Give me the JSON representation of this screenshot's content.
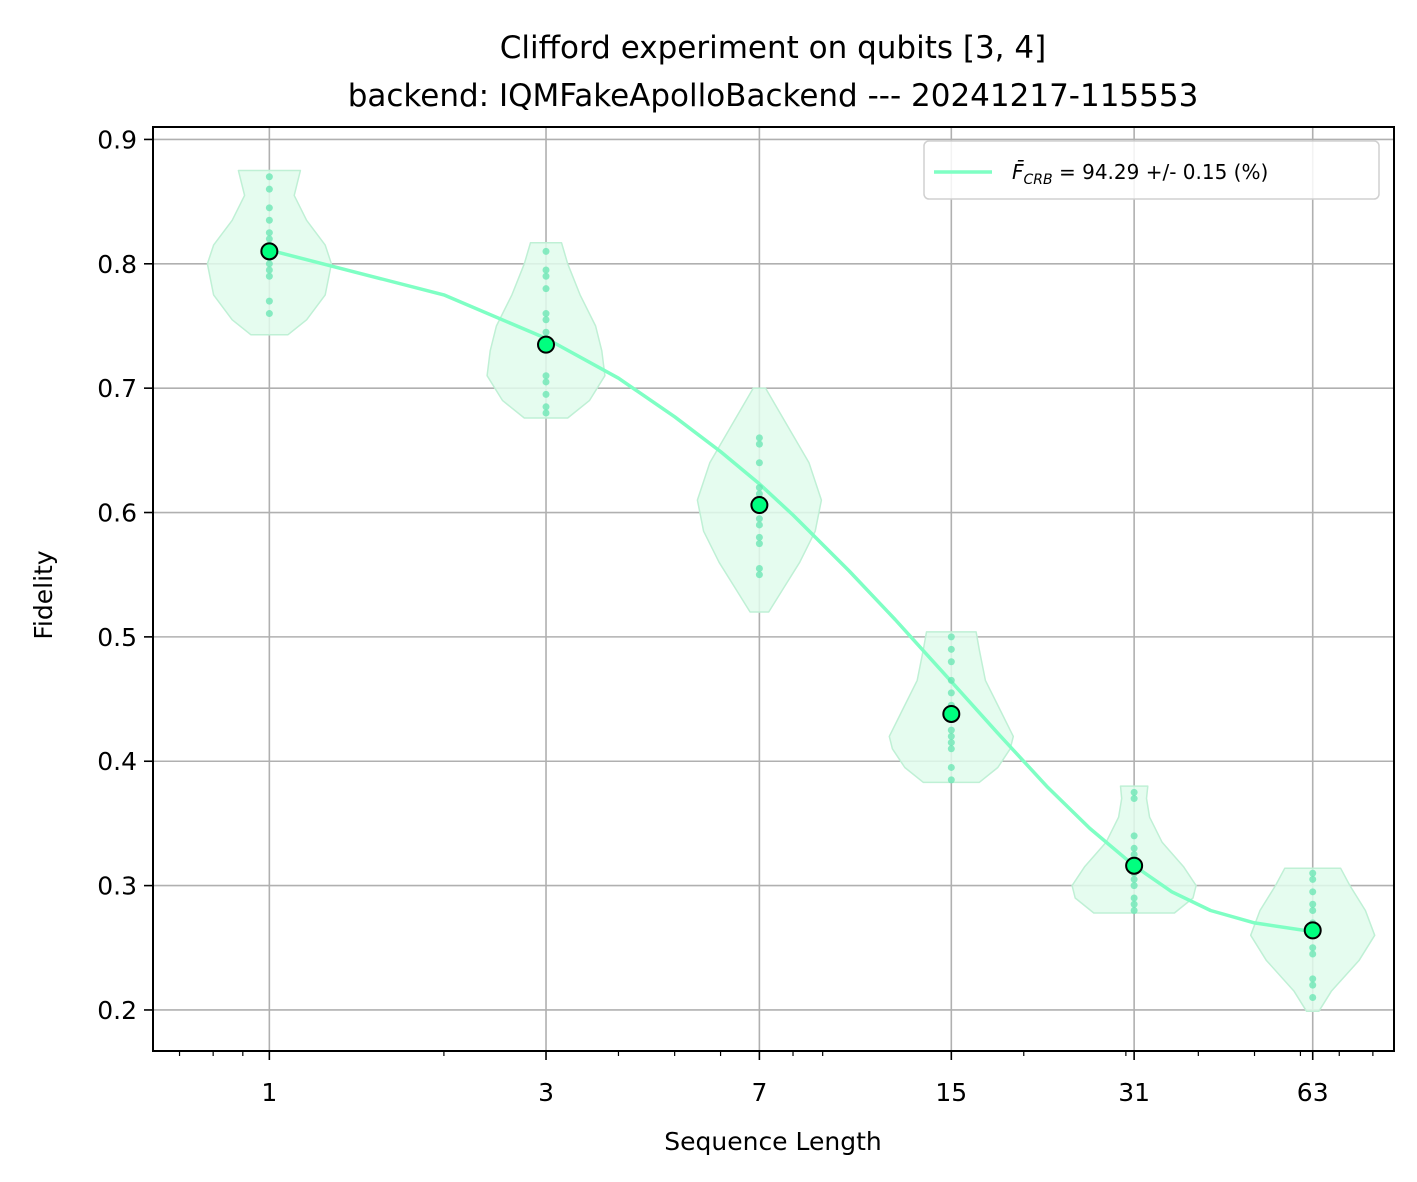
{
  "chart_data": {
    "type": "scatter",
    "title": "Clifford experiment on qubits [3, 4]",
    "subtitle": "backend: IQMFakeApolloBackend --- 20241217-115553",
    "xlabel": "Sequence Length",
    "ylabel": "Fidelity",
    "xscale": "log",
    "xlim": [
      0.63,
      87
    ],
    "ylim": [
      0.167,
      0.91
    ],
    "grid": true,
    "x_ticks": [
      1,
      3,
      7,
      15,
      31,
      63
    ],
    "x_tick_labels": [
      "1",
      "3",
      "7",
      "15",
      "31",
      "63"
    ],
    "y_ticks": [
      0.2,
      0.3,
      0.4,
      0.5,
      0.6,
      0.7,
      0.8,
      0.9
    ],
    "y_tick_labels": [
      "0.2",
      "0.3",
      "0.4",
      "0.5",
      "0.6",
      "0.7",
      "0.8",
      "0.9"
    ],
    "colors": {
      "fit_line": "#7fffc4",
      "marker_fill": "#00ff7f",
      "violin_fill": "#e0fbec",
      "violin_edge": "#bff0d5",
      "samples": "#66e6b2",
      "grid": "#b0b0b0"
    },
    "legend": {
      "position": "upper right",
      "label_symbol": "F̄",
      "label_subscript": "CRB",
      "label_rest": " = 94.29 +/- 0.15 (%)"
    },
    "means": [
      {
        "x": 1,
        "y": 0.81
      },
      {
        "x": 3,
        "y": 0.735
      },
      {
        "x": 7,
        "y": 0.606
      },
      {
        "x": 15,
        "y": 0.438
      },
      {
        "x": 31,
        "y": 0.316
      },
      {
        "x": 63,
        "y": 0.264
      }
    ],
    "fit_curve": [
      {
        "x": 1,
        "y": 0.811
      },
      {
        "x": 2,
        "y": 0.775
      },
      {
        "x": 3,
        "y": 0.74
      },
      {
        "x": 4,
        "y": 0.708
      },
      {
        "x": 5,
        "y": 0.677
      },
      {
        "x": 6,
        "y": 0.649
      },
      {
        "x": 7,
        "y": 0.623
      },
      {
        "x": 8,
        "y": 0.598
      },
      {
        "x": 10,
        "y": 0.553
      },
      {
        "x": 12,
        "y": 0.514
      },
      {
        "x": 15,
        "y": 0.464
      },
      {
        "x": 18,
        "y": 0.423
      },
      {
        "x": 22,
        "y": 0.379
      },
      {
        "x": 26,
        "y": 0.346
      },
      {
        "x": 31,
        "y": 0.316
      },
      {
        "x": 36,
        "y": 0.295
      },
      {
        "x": 42,
        "y": 0.28
      },
      {
        "x": 50,
        "y": 0.27
      },
      {
        "x": 63,
        "y": 0.263
      }
    ],
    "distributions": [
      {
        "x": 1,
        "min": 0.743,
        "max": 0.875,
        "samples": [
          0.76,
          0.77,
          0.79,
          0.795,
          0.8,
          0.805,
          0.81,
          0.815,
          0.82,
          0.825,
          0.835,
          0.845,
          0.86,
          0.87
        ],
        "profile": [
          [
            0.743,
            0.3
          ],
          [
            0.755,
            0.6
          ],
          [
            0.775,
            0.9
          ],
          [
            0.8,
            1.0
          ],
          [
            0.815,
            0.9
          ],
          [
            0.835,
            0.6
          ],
          [
            0.855,
            0.4
          ],
          [
            0.875,
            0.5
          ]
        ]
      },
      {
        "x": 3,
        "min": 0.676,
        "max": 0.817,
        "samples": [
          0.68,
          0.685,
          0.695,
          0.705,
          0.71,
          0.74,
          0.745,
          0.755,
          0.76,
          0.78,
          0.79,
          0.795,
          0.81
        ],
        "profile": [
          [
            0.676,
            0.35
          ],
          [
            0.69,
            0.7
          ],
          [
            0.71,
            0.95
          ],
          [
            0.73,
            0.9
          ],
          [
            0.75,
            0.8
          ],
          [
            0.775,
            0.55
          ],
          [
            0.8,
            0.35
          ],
          [
            0.817,
            0.25
          ]
        ]
      },
      {
        "x": 7,
        "min": 0.52,
        "max": 0.7,
        "samples": [
          0.55,
          0.555,
          0.575,
          0.58,
          0.59,
          0.595,
          0.61,
          0.615,
          0.62,
          0.64,
          0.655,
          0.66
        ],
        "profile": [
          [
            0.52,
            0.15
          ],
          [
            0.54,
            0.4
          ],
          [
            0.56,
            0.65
          ],
          [
            0.585,
            0.9
          ],
          [
            0.61,
            1.0
          ],
          [
            0.64,
            0.8
          ],
          [
            0.67,
            0.45
          ],
          [
            0.7,
            0.1
          ]
        ]
      },
      {
        "x": 15,
        "min": 0.383,
        "max": 0.504,
        "samples": [
          0.385,
          0.395,
          0.41,
          0.415,
          0.42,
          0.425,
          0.435,
          0.445,
          0.455,
          0.465,
          0.48,
          0.49,
          0.5
        ],
        "profile": [
          [
            0.383,
            0.45
          ],
          [
            0.395,
            0.75
          ],
          [
            0.41,
            0.95
          ],
          [
            0.42,
            1.0
          ],
          [
            0.44,
            0.8
          ],
          [
            0.465,
            0.55
          ],
          [
            0.49,
            0.45
          ],
          [
            0.504,
            0.4
          ]
        ]
      },
      {
        "x": 31,
        "min": 0.278,
        "max": 0.38,
        "samples": [
          0.28,
          0.285,
          0.29,
          0.3,
          0.305,
          0.31,
          0.32,
          0.325,
          0.33,
          0.34,
          0.37,
          0.375
        ],
        "profile": [
          [
            0.278,
            0.65
          ],
          [
            0.29,
            0.95
          ],
          [
            0.3,
            1.0
          ],
          [
            0.315,
            0.8
          ],
          [
            0.335,
            0.45
          ],
          [
            0.355,
            0.25
          ],
          [
            0.37,
            0.2
          ],
          [
            0.38,
            0.22
          ]
        ]
      },
      {
        "x": 63,
        "min": 0.199,
        "max": 0.314,
        "samples": [
          0.21,
          0.22,
          0.225,
          0.245,
          0.25,
          0.26,
          0.27,
          0.28,
          0.285,
          0.295,
          0.305,
          0.31
        ],
        "profile": [
          [
            0.199,
            0.1
          ],
          [
            0.215,
            0.3
          ],
          [
            0.24,
            0.75
          ],
          [
            0.26,
            1.0
          ],
          [
            0.28,
            0.85
          ],
          [
            0.3,
            0.6
          ],
          [
            0.314,
            0.45
          ]
        ]
      }
    ]
  }
}
